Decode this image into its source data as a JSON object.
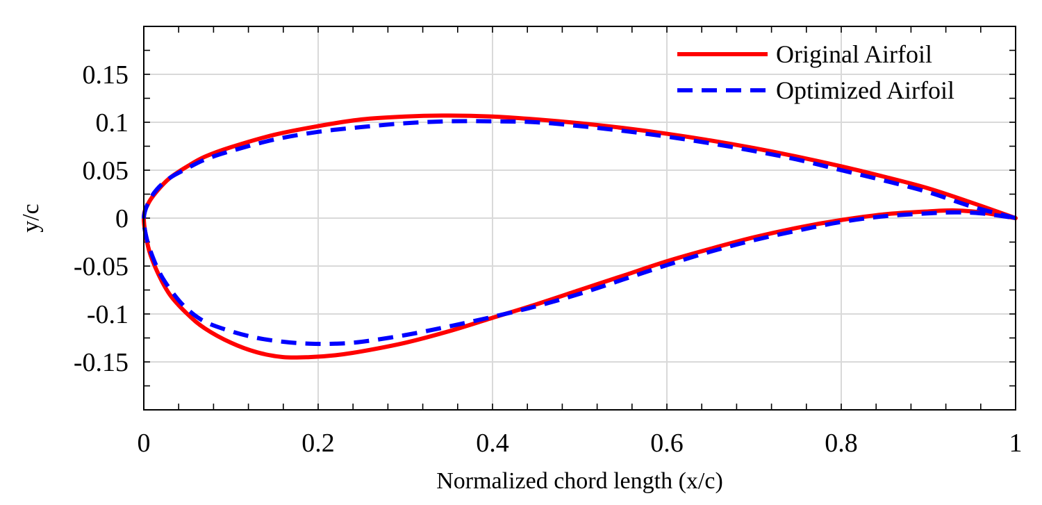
{
  "chart_data": {
    "type": "line",
    "title": "",
    "xlabel": "Normalized chord length (x/c)",
    "ylabel": "y/c",
    "xlim": [
      0,
      1
    ],
    "ylim": [
      -0.2,
      0.2
    ],
    "xticks": [
      0,
      0.2,
      0.4,
      0.6,
      0.8,
      1
    ],
    "xtick_labels": [
      "0",
      "0.2",
      "0.4",
      "0.6",
      "0.8",
      "1"
    ],
    "yticks": [
      -0.15,
      -0.1,
      -0.05,
      0,
      0.05,
      0.1,
      0.15
    ],
    "ytick_labels": [
      "-0.15",
      "-0.1",
      "-0.05",
      "0",
      "0.05",
      "0.1",
      "0.15"
    ],
    "grid": true,
    "legend_position": "top-right",
    "series": [
      {
        "name": "Original Airfoil",
        "color": "#ff0000",
        "style": "solid",
        "x": [
          1.0,
          0.95,
          0.9,
          0.85,
          0.8,
          0.75,
          0.7,
          0.65,
          0.6,
          0.55,
          0.5,
          0.45,
          0.4,
          0.35,
          0.3,
          0.25,
          0.2,
          0.15,
          0.1,
          0.07,
          0.05,
          0.03,
          0.015,
          0.005,
          0.0,
          0.005,
          0.015,
          0.03,
          0.05,
          0.07,
          0.1,
          0.13,
          0.16,
          0.19,
          0.22,
          0.25,
          0.3,
          0.35,
          0.4,
          0.45,
          0.5,
          0.55,
          0.6,
          0.65,
          0.7,
          0.75,
          0.8,
          0.85,
          0.9,
          0.93,
          0.96,
          1.0
        ],
        "y": [
          0.0,
          0.016,
          0.031,
          0.043,
          0.054,
          0.064,
          0.073,
          0.081,
          0.088,
          0.094,
          0.099,
          0.103,
          0.106,
          0.107,
          0.106,
          0.103,
          0.096,
          0.087,
          0.074,
          0.064,
          0.054,
          0.042,
          0.028,
          0.015,
          0.0,
          -0.03,
          -0.055,
          -0.08,
          -0.1,
          -0.115,
          -0.13,
          -0.14,
          -0.145,
          -0.145,
          -0.143,
          -0.139,
          -0.13,
          -0.118,
          -0.104,
          -0.09,
          -0.075,
          -0.06,
          -0.045,
          -0.032,
          -0.02,
          -0.01,
          -0.002,
          0.004,
          0.007,
          0.008,
          0.006,
          0.0
        ]
      },
      {
        "name": "Optimized Airfoil",
        "color": "#0000ff",
        "style": "dashed",
        "x": [
          1.0,
          0.95,
          0.9,
          0.85,
          0.8,
          0.75,
          0.7,
          0.65,
          0.6,
          0.55,
          0.5,
          0.45,
          0.4,
          0.35,
          0.3,
          0.25,
          0.2,
          0.15,
          0.1,
          0.07,
          0.05,
          0.03,
          0.015,
          0.005,
          0.0,
          0.003,
          0.01,
          0.02,
          0.035,
          0.05,
          0.07,
          0.1,
          0.13,
          0.16,
          0.19,
          0.22,
          0.25,
          0.3,
          0.35,
          0.4,
          0.45,
          0.5,
          0.55,
          0.6,
          0.65,
          0.7,
          0.75,
          0.8,
          0.85,
          0.9,
          0.93,
          0.96,
          1.0
        ],
        "y": [
          0.0,
          0.012,
          0.027,
          0.039,
          0.05,
          0.061,
          0.07,
          0.078,
          0.085,
          0.091,
          0.096,
          0.1,
          0.101,
          0.101,
          0.099,
          0.095,
          0.09,
          0.082,
          0.07,
          0.061,
          0.052,
          0.042,
          0.03,
          0.016,
          0.0,
          -0.02,
          -0.04,
          -0.06,
          -0.08,
          -0.095,
          -0.108,
          -0.118,
          -0.125,
          -0.129,
          -0.131,
          -0.131,
          -0.129,
          -0.122,
          -0.113,
          -0.103,
          -0.092,
          -0.079,
          -0.064,
          -0.049,
          -0.035,
          -0.023,
          -0.013,
          -0.004,
          0.002,
          0.005,
          0.006,
          0.005,
          0.0
        ]
      }
    ]
  }
}
